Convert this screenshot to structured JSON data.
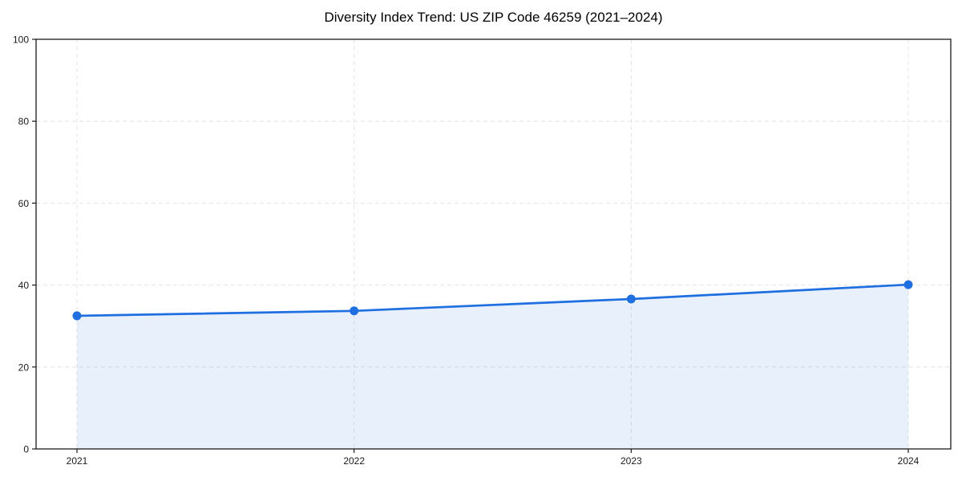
{
  "chart_data": {
    "type": "area",
    "title": "Diversity Index Trend: US ZIP Code 46259 (2021–2024)",
    "categories": [
      "2021",
      "2022",
      "2023",
      "2024"
    ],
    "series": [
      {
        "name": "Diversity Index",
        "values": [
          32.5,
          33.7,
          36.6,
          40.1
        ]
      }
    ],
    "xlabel": "",
    "ylabel": "",
    "ylim": [
      0,
      100
    ],
    "y_ticks": [
      0,
      20,
      40,
      60,
      80,
      100
    ],
    "grid": true,
    "grid_style": "dashed",
    "legend": "none",
    "line_color": "#1f6fe0",
    "fill_color": "#e9f0fc",
    "marker": "circle",
    "spine_color": "#1a1a1a",
    "grid_color": "#e4e4e4",
    "tick_label_color": "#1a1a1a"
  }
}
